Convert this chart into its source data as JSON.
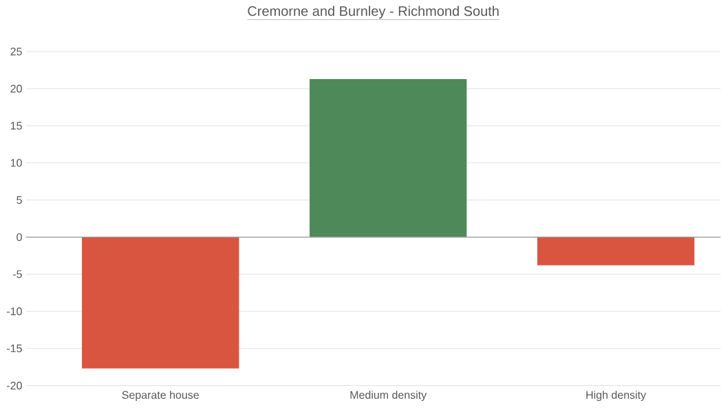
{
  "chart_data": {
    "type": "bar",
    "title": "Cremorne and Burnley - Richmond South",
    "categories": [
      "Separate house",
      "Medium density",
      "High density"
    ],
    "values": [
      -17.7,
      21.3,
      -3.8
    ],
    "colors": [
      "#d9553f",
      "#4e8a59",
      "#d9553f"
    ],
    "ylim": [
      -20,
      25
    ],
    "yticks": [
      -20,
      -15,
      -10,
      -5,
      0,
      5,
      10,
      15,
      20,
      25
    ],
    "grid": "y"
  }
}
